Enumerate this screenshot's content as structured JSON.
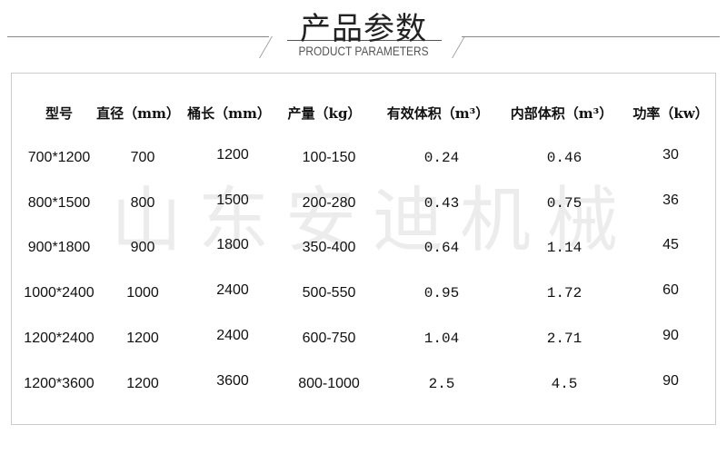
{
  "header": {
    "title": "产品参数",
    "subtitle": "PRODUCT PARAMETERS"
  },
  "watermark": "山东安迪机械",
  "table": {
    "columns": [
      "型号",
      "直径（mm）",
      "桶长（mm）",
      "产量（kg）",
      "有效体积（m³）",
      "内部体积（m³）",
      "功率（kw）"
    ],
    "rows": [
      [
        "700*1200",
        "700",
        "1200",
        "100-150",
        "0.24",
        "0.46",
        "30"
      ],
      [
        "800*1500",
        "800",
        "1500",
        "200-280",
        "0.43",
        "0.75",
        "36"
      ],
      [
        "900*1800",
        "900",
        "1800",
        "350-400",
        "0.64",
        "1.14",
        "45"
      ],
      [
        "1000*2400",
        "1000",
        "2400",
        "500-550",
        "0.95",
        "1.72",
        "60"
      ],
      [
        "1200*2400",
        "1200",
        "2400",
        "600-750",
        "1.04",
        "2.71",
        "90"
      ],
      [
        "1200*3600",
        "1200",
        "3600",
        "800-1000",
        "2.5",
        "4.5",
        "90"
      ]
    ]
  }
}
